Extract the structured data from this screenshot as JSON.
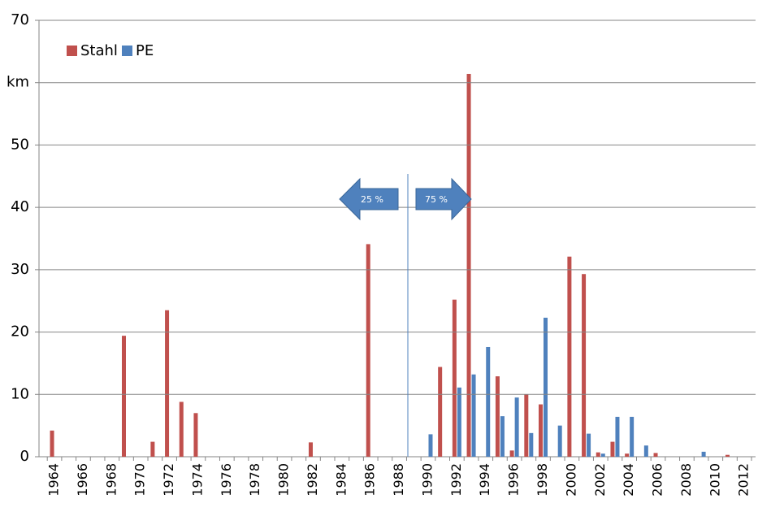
{
  "chart_data": {
    "type": "bar",
    "categories": [
      "1964",
      null,
      "1966",
      null,
      "1968",
      null,
      "1970",
      null,
      "1972",
      null,
      "1974",
      null,
      "1976",
      null,
      "1978",
      null,
      "1980",
      null,
      "1982",
      null,
      "1984",
      null,
      "1986",
      null,
      "1988",
      null,
      "1990",
      null,
      "1992",
      null,
      "1994",
      null,
      "1996",
      null,
      "1998",
      null,
      "2000",
      null,
      "2002",
      null,
      "2004",
      null,
      "2006",
      null,
      "2008",
      null,
      "2010",
      null,
      "2012"
    ],
    "series": [
      {
        "name": "Stahl",
        "color": "#c0504d",
        "values": [
          4.2,
          0,
          0,
          0,
          0,
          19.4,
          0,
          2.4,
          23.5,
          8.8,
          7.0,
          0,
          0,
          0,
          0,
          0,
          0,
          0,
          2.3,
          0,
          0,
          0,
          34.1,
          0,
          0,
          0,
          0,
          14.4,
          25.2,
          61.4,
          0,
          12.9,
          1.0,
          10.0,
          8.4,
          0,
          32.1,
          29.3,
          0.7,
          2.4,
          0.5,
          0,
          0.6,
          0,
          0,
          0,
          0,
          0.3,
          0
        ]
      },
      {
        "name": "PE",
        "color": "#4f81bd",
        "values": [
          0,
          0,
          0,
          0,
          0,
          0,
          0,
          0,
          0,
          0,
          0,
          0,
          0,
          0,
          0,
          0,
          0,
          0,
          0,
          0,
          0,
          0,
          0,
          0,
          0,
          0,
          3.6,
          0,
          11.1,
          13.2,
          17.6,
          6.5,
          9.5,
          3.8,
          22.3,
          5.0,
          0,
          3.7,
          0.5,
          6.4,
          6.4,
          1.8,
          0,
          0,
          0,
          0.8,
          0,
          0,
          0
        ]
      }
    ],
    "ylim": [
      0,
      70
    ],
    "yticks": [
      0,
      10,
      20,
      30,
      40,
      50,
      {
        "value": 60,
        "label": "km"
      },
      70
    ],
    "grid": true,
    "legend": "top-left",
    "annotations": [
      "25 %",
      "75 %"
    ]
  }
}
